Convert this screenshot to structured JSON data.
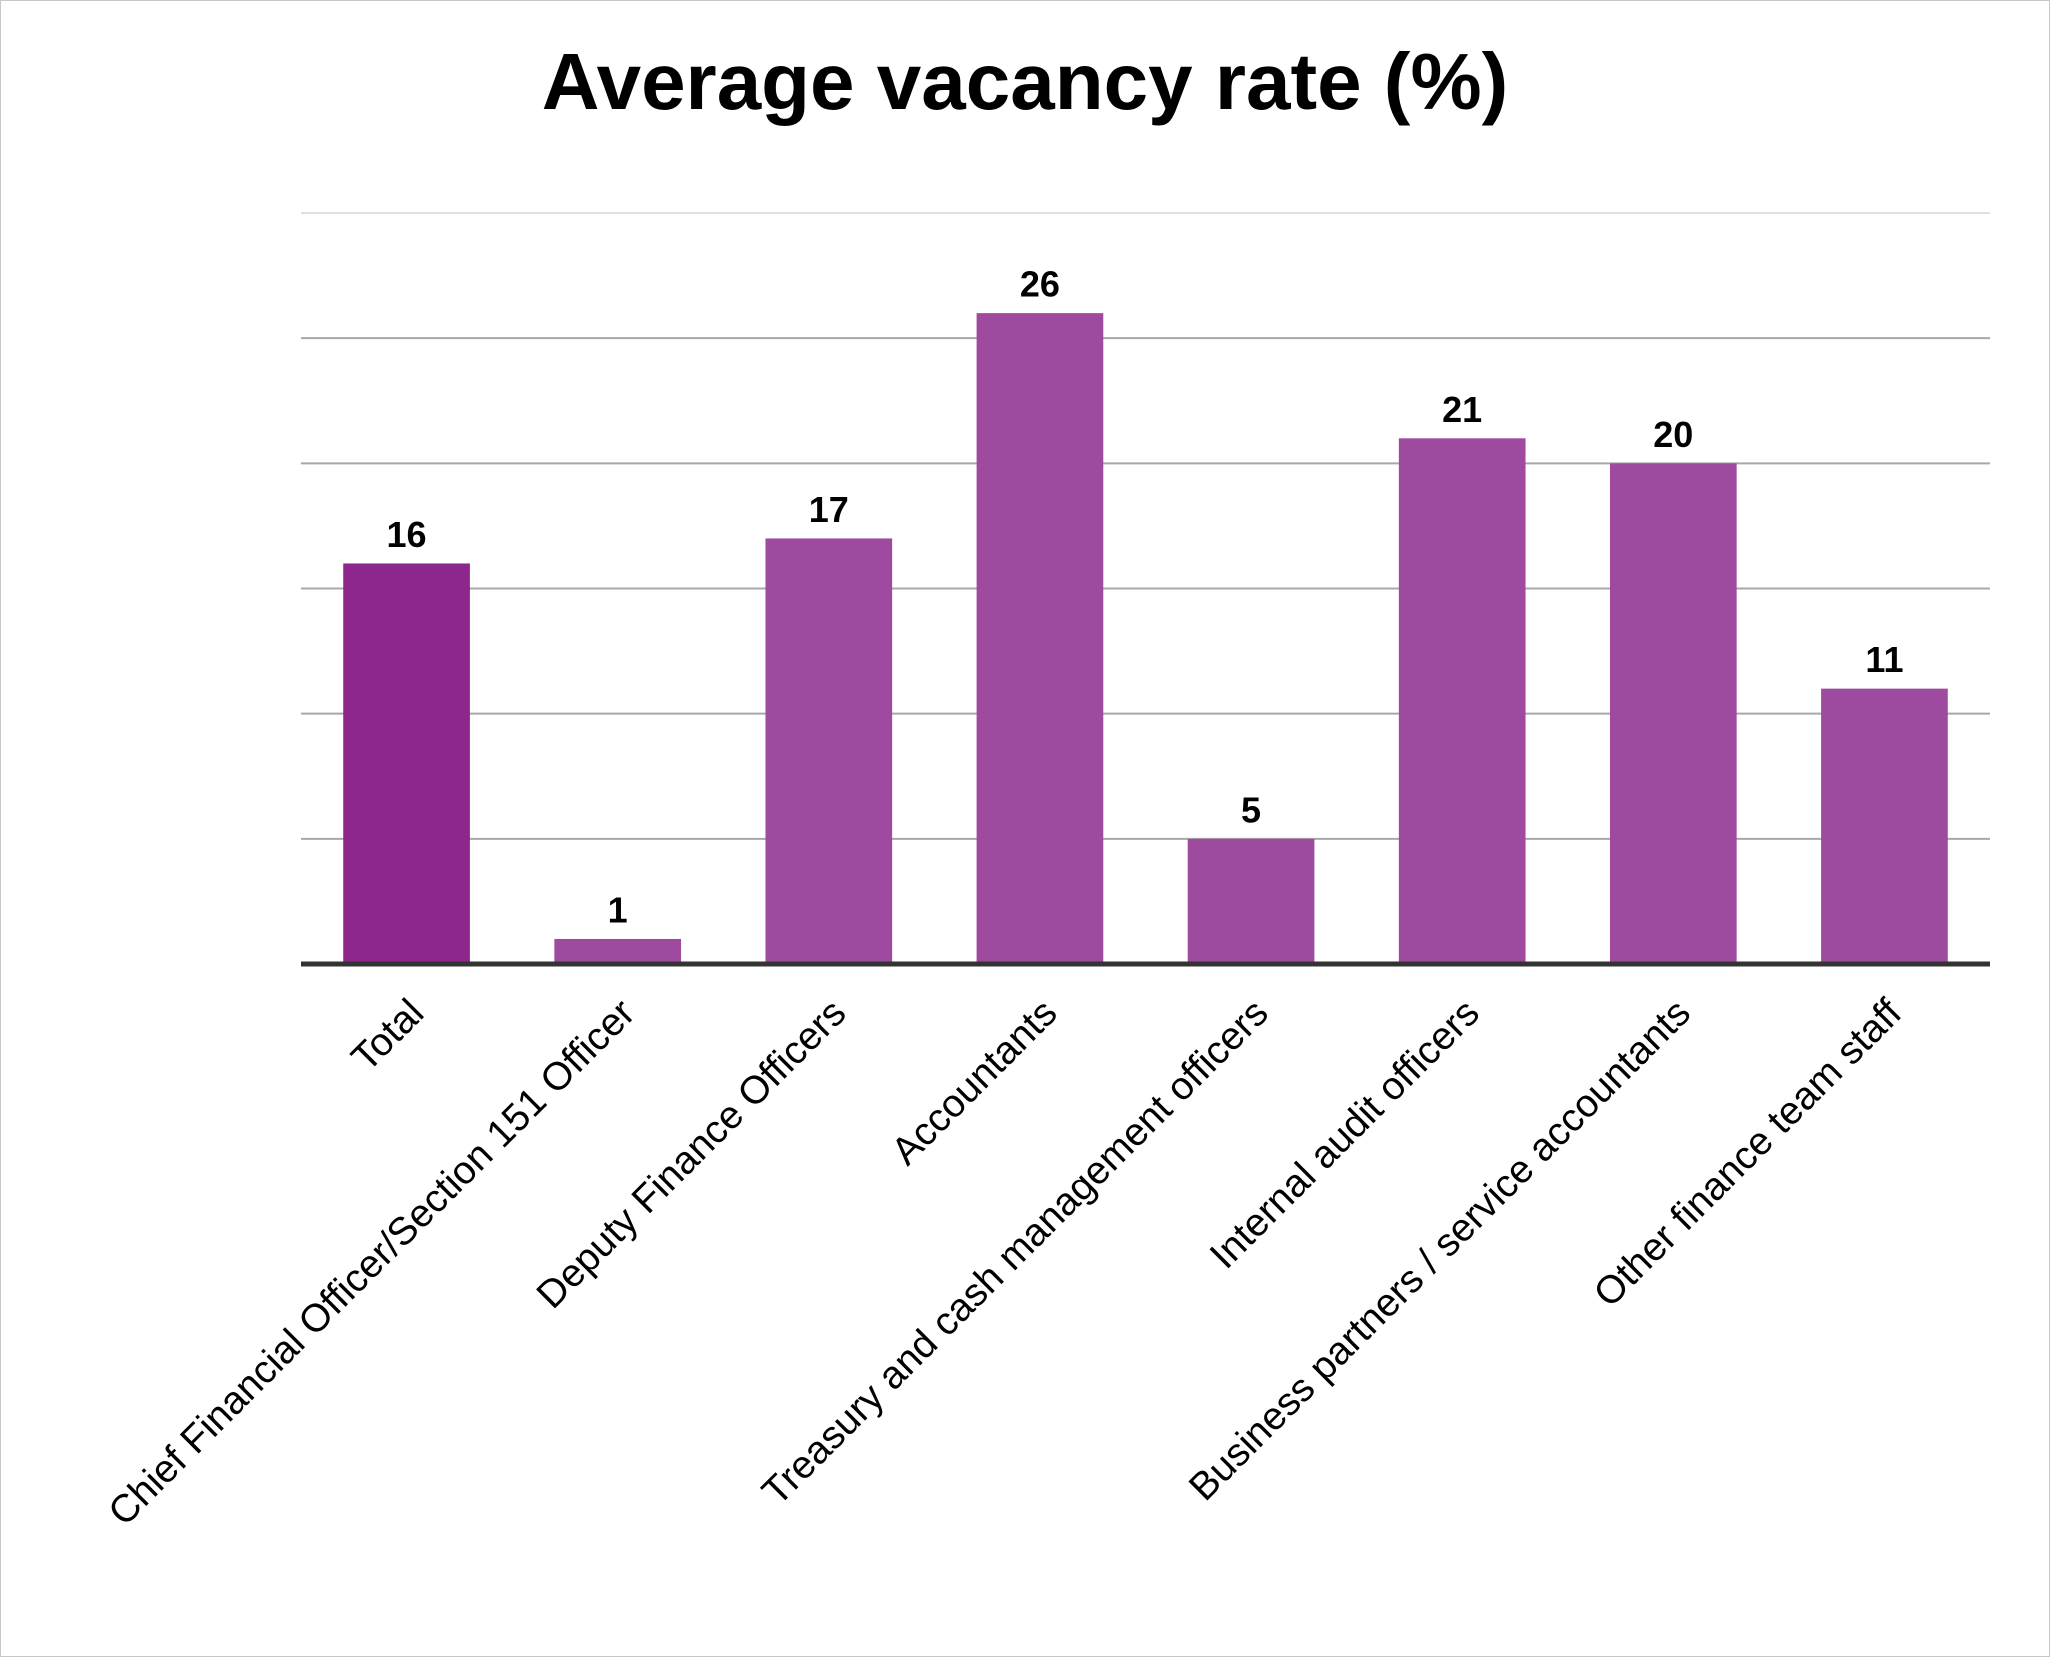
{
  "chart_data": {
    "type": "bar",
    "title": "Average vacancy rate (%)",
    "categories": [
      "Total",
      "Chief Financial Officer/Section 151 Officer",
      "Deputy Finance Officers",
      "Accountants",
      "Treasury and cash management officers",
      "Internal audit officers",
      "Business partners / service accountants",
      "Other finance team staff"
    ],
    "values": [
      16,
      1,
      17,
      26,
      5,
      21,
      20,
      11
    ],
    "colors": [
      "#8e278d",
      "#9e4a9e",
      "#9e4a9e",
      "#9e4a9e",
      "#9e4a9e",
      "#9e4a9e",
      "#9e4a9e",
      "#9e4a9e"
    ],
    "ylim": [
      0,
      30
    ],
    "yticks": [
      0,
      5,
      10,
      15,
      20,
      25,
      30
    ],
    "grid": true
  }
}
